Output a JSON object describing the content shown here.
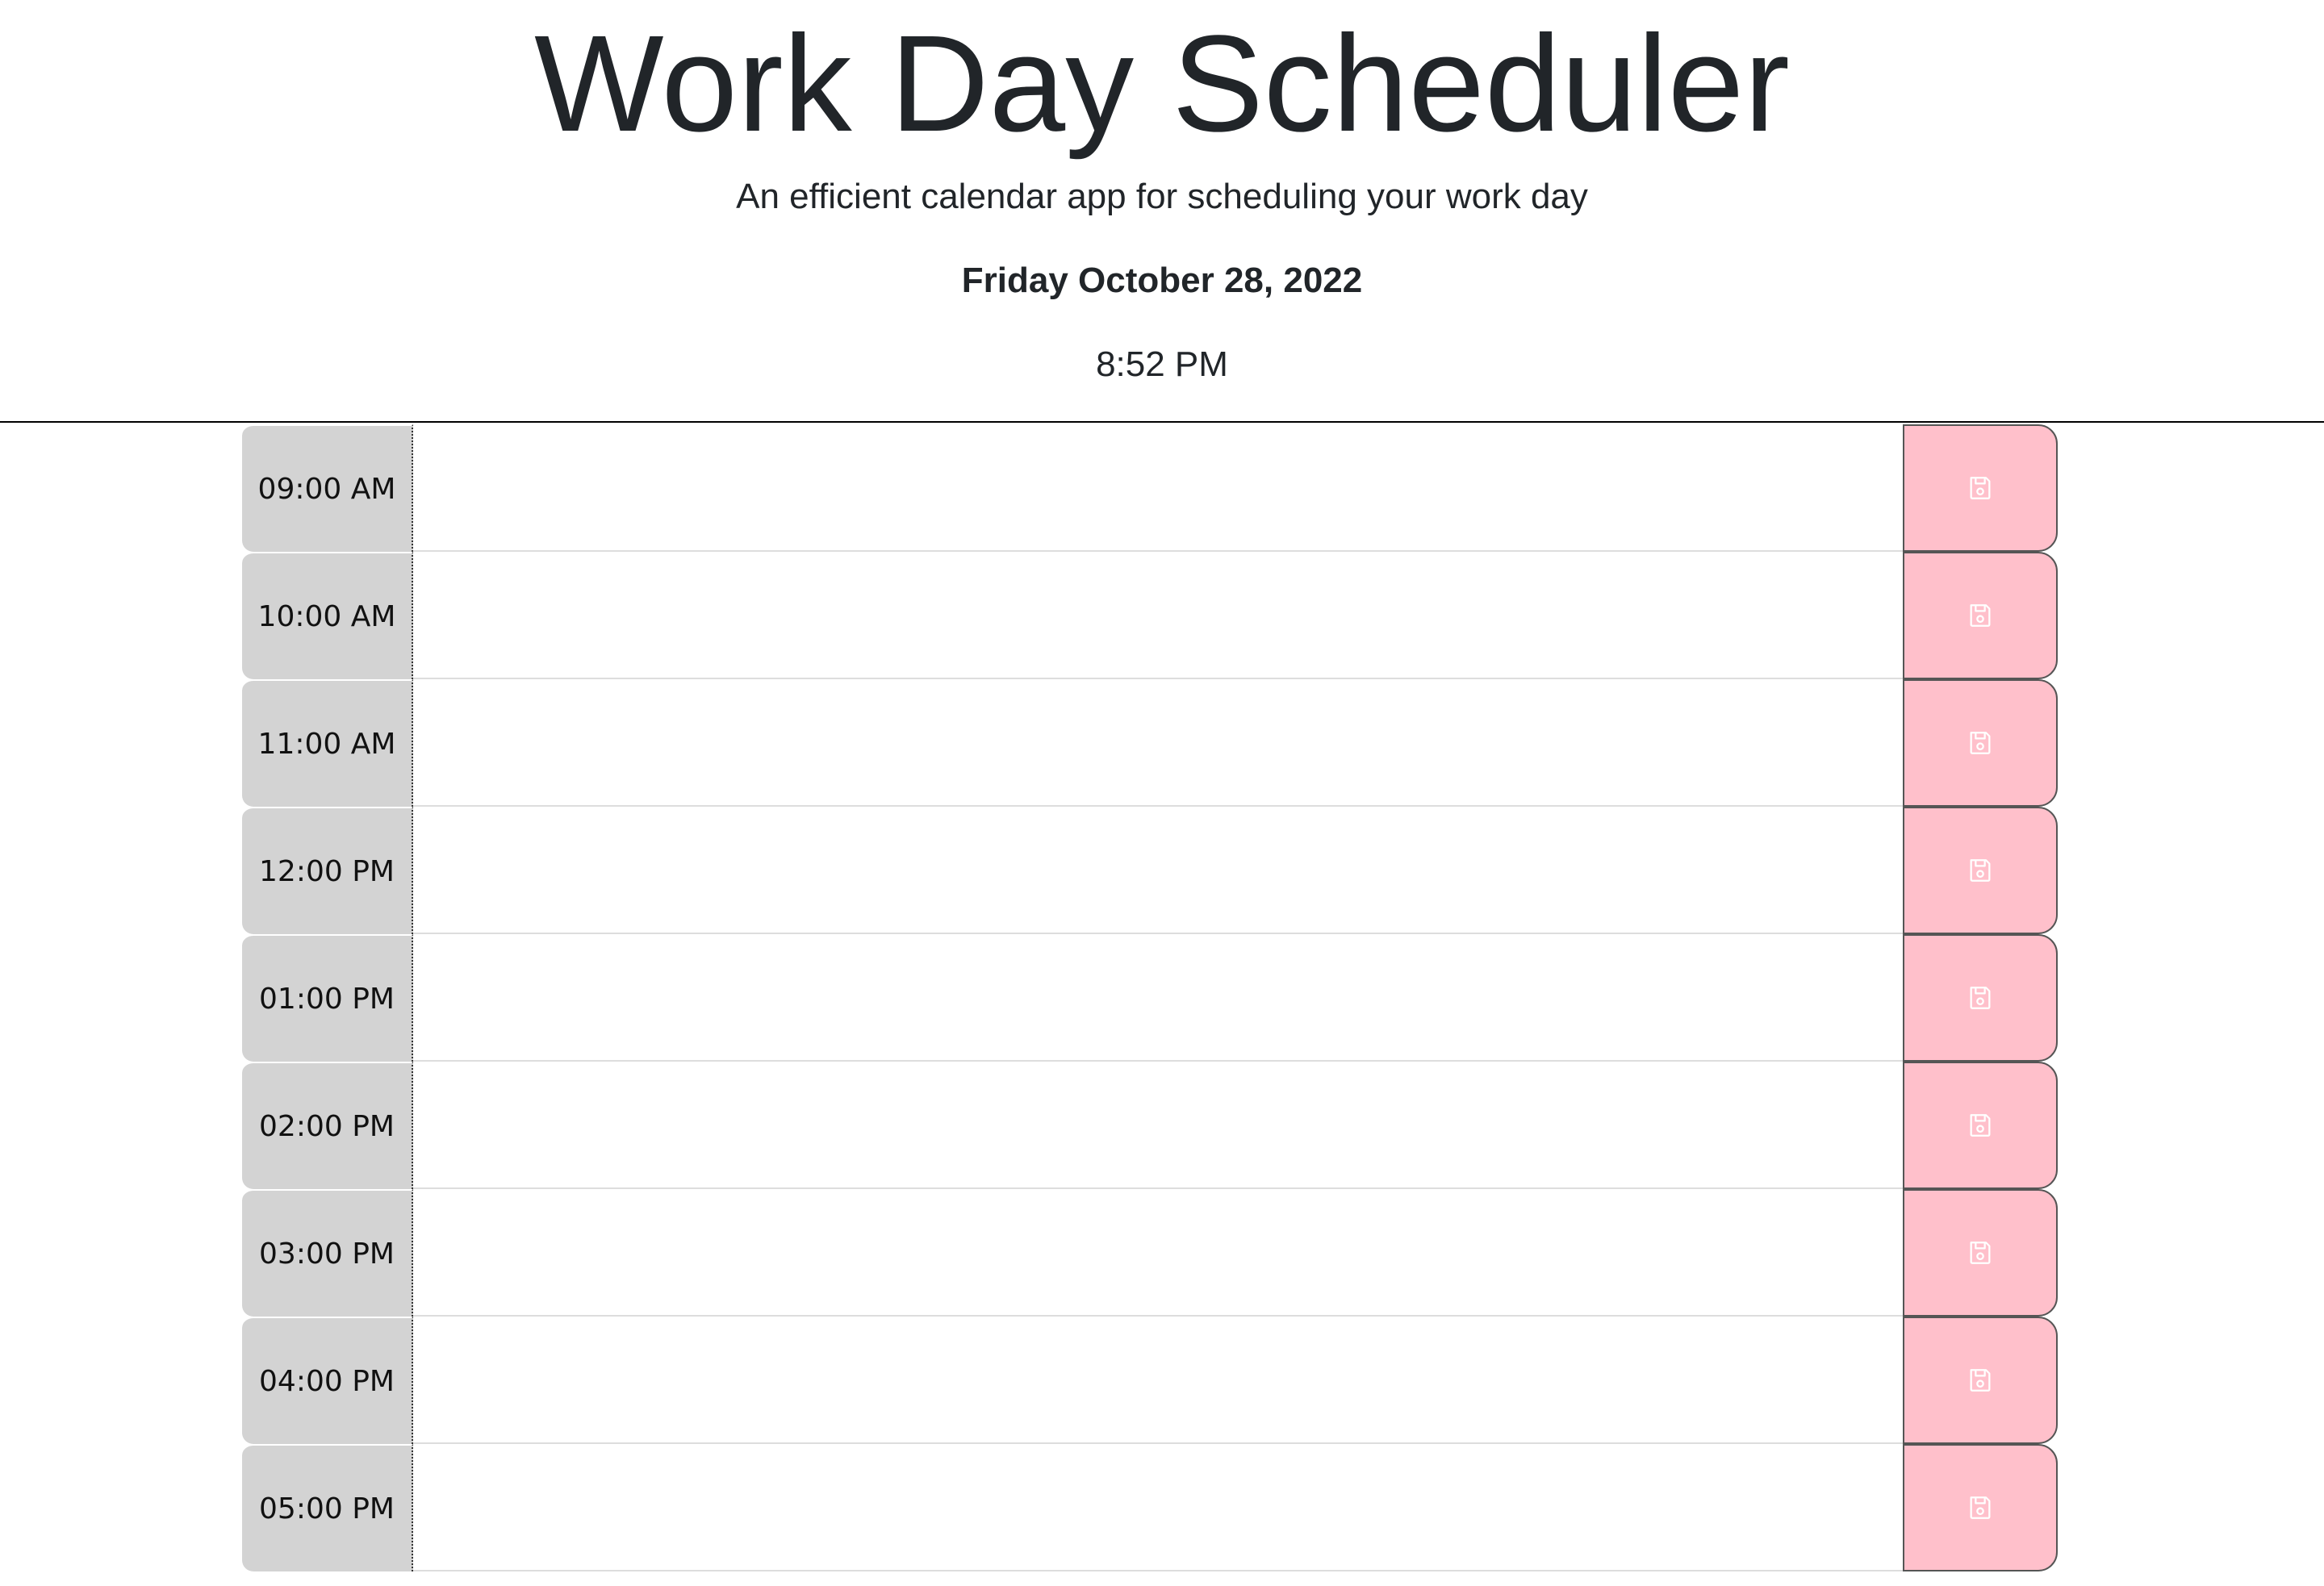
{
  "header": {
    "title": "Work Day Scheduler",
    "subtitle": "An efficient calendar app for scheduling your work day",
    "date": "Friday October 28, 2022",
    "time": "8:52 PM"
  },
  "colors": {
    "past": "#d3d3d3",
    "save_button": "#ffc0cb",
    "divider": "#000000"
  },
  "schedule": {
    "save_icon": "floppy-disk-icon",
    "hours": [
      {
        "label": "09:00 AM",
        "value": ""
      },
      {
        "label": "10:00 AM",
        "value": ""
      },
      {
        "label": "11:00 AM",
        "value": ""
      },
      {
        "label": "12:00 PM",
        "value": ""
      },
      {
        "label": "01:00 PM",
        "value": ""
      },
      {
        "label": "02:00 PM",
        "value": ""
      },
      {
        "label": "03:00 PM",
        "value": ""
      },
      {
        "label": "04:00 PM",
        "value": ""
      },
      {
        "label": "05:00 PM",
        "value": ""
      }
    ]
  }
}
